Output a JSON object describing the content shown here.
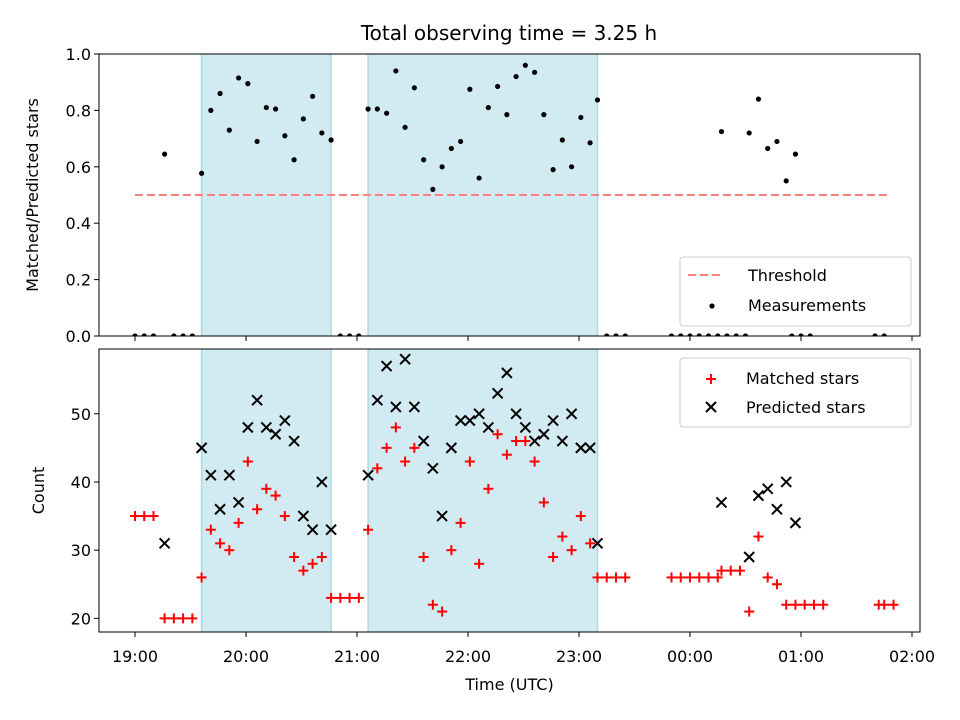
{
  "title": "Total observing time = 3.25 h",
  "colors": {
    "shade": "#add8e6",
    "threshold": "#ff7f7f",
    "measurement": "#000000",
    "matched": "#ff0000",
    "predicted": "#000000"
  },
  "chart_data": [
    {
      "type": "scatter",
      "ylabel": "Matched/Predicted stars",
      "xlabel": "",
      "ylim": [
        0,
        1.0
      ],
      "yticks": [
        "0.0",
        "0.2",
        "0.4",
        "0.6",
        "0.8",
        "1.0"
      ],
      "xticks": [
        "19:00",
        "20:00",
        "21:00",
        "22:00",
        "23:00",
        "00:00",
        "01:00",
        "02:00"
      ],
      "legend": "bottom-right",
      "threshold": {
        "name": "Threshold",
        "y": 0.5,
        "x_start": "19:00",
        "x_end": "01:48"
      },
      "shaded_intervals": [
        [
          "19:36",
          "20:46"
        ],
        [
          "21:06",
          "23:10"
        ]
      ],
      "series": [
        {
          "name": "Measurements",
          "points": [
            [
              "19:00",
              0.0
            ],
            [
              "19:05",
              0.0
            ],
            [
              "19:10",
              0.0
            ],
            [
              "19:16",
              0.645
            ],
            [
              "19:21",
              0.0
            ],
            [
              "19:26",
              0.0
            ],
            [
              "19:31",
              0.0
            ],
            [
              "19:36",
              0.577
            ],
            [
              "19:41",
              0.8
            ],
            [
              "19:46",
              0.86
            ],
            [
              "19:51",
              0.73
            ],
            [
              "19:56",
              0.915
            ],
            [
              "20:01",
              0.895
            ],
            [
              "20:06",
              0.69
            ],
            [
              "20:11",
              0.81
            ],
            [
              "20:16",
              0.805
            ],
            [
              "20:21",
              0.71
            ],
            [
              "20:26",
              0.625
            ],
            [
              "20:31",
              0.77
            ],
            [
              "20:36",
              0.85
            ],
            [
              "20:41",
              0.72
            ],
            [
              "20:46",
              0.695
            ],
            [
              "20:51",
              0.0
            ],
            [
              "20:56",
              0.0
            ],
            [
              "21:01",
              0.0
            ],
            [
              "21:06",
              0.805
            ],
            [
              "21:11",
              0.805
            ],
            [
              "21:16",
              0.79
            ],
            [
              "21:21",
              0.94
            ],
            [
              "21:26",
              0.74
            ],
            [
              "21:31",
              0.88
            ],
            [
              "21:36",
              0.625
            ],
            [
              "21:41",
              0.52
            ],
            [
              "21:46",
              0.6
            ],
            [
              "21:51",
              0.665
            ],
            [
              "21:56",
              0.69
            ],
            [
              "22:01",
              0.875
            ],
            [
              "22:06",
              0.56
            ],
            [
              "22:11",
              0.81
            ],
            [
              "22:16",
              0.885
            ],
            [
              "22:21",
              0.785
            ],
            [
              "22:26",
              0.92
            ],
            [
              "22:31",
              0.96
            ],
            [
              "22:36",
              0.935
            ],
            [
              "22:41",
              0.785
            ],
            [
              "22:46",
              0.59
            ],
            [
              "22:51",
              0.695
            ],
            [
              "22:56",
              0.6
            ],
            [
              "23:01",
              0.775
            ],
            [
              "23:06",
              0.685
            ],
            [
              "23:10",
              0.837
            ],
            [
              "23:15",
              0.0
            ],
            [
              "23:20",
              0.0
            ],
            [
              "23:25",
              0.0
            ],
            [
              "23:50",
              0.0
            ],
            [
              "23:55",
              0.0
            ],
            [
              "00:00",
              0.0
            ],
            [
              "00:05",
              0.0
            ],
            [
              "00:10",
              0.0
            ],
            [
              "00:15",
              0.0
            ],
            [
              "00:20",
              0.0
            ],
            [
              "00:17",
              0.725
            ],
            [
              "00:25",
              0.0
            ],
            [
              "00:30",
              0.0
            ],
            [
              "00:32",
              0.72
            ],
            [
              "00:37",
              0.84
            ],
            [
              "00:42",
              0.665
            ],
            [
              "00:47",
              0.69
            ],
            [
              "00:52",
              0.55
            ],
            [
              "00:57",
              0.645
            ],
            [
              "00:55",
              0.0
            ],
            [
              "01:00",
              0.0
            ],
            [
              "01:05",
              0.0
            ],
            [
              "01:40",
              0.0
            ],
            [
              "01:45",
              0.0
            ]
          ]
        }
      ]
    },
    {
      "type": "scatter",
      "ylabel": "Count",
      "xlabel": "Time (UTC)",
      "ylim": [
        18,
        59.5
      ],
      "yticks": [
        "20",
        "30",
        "40",
        "50"
      ],
      "xticks": [
        "19:00",
        "20:00",
        "21:00",
        "22:00",
        "23:00",
        "00:00",
        "01:00",
        "02:00"
      ],
      "legend": "top-right",
      "shaded_intervals": [
        [
          "19:36",
          "20:46"
        ],
        [
          "21:06",
          "23:10"
        ]
      ],
      "series": [
        {
          "name": "Matched stars",
          "points": [
            [
              "19:00",
              35
            ],
            [
              "19:05",
              35
            ],
            [
              "19:10",
              35
            ],
            [
              "19:16",
              20
            ],
            [
              "19:21",
              20
            ],
            [
              "19:26",
              20
            ],
            [
              "19:31",
              20
            ],
            [
              "19:36",
              26
            ],
            [
              "19:41",
              33
            ],
            [
              "19:46",
              31
            ],
            [
              "19:51",
              30
            ],
            [
              "19:56",
              34
            ],
            [
              "20:01",
              43
            ],
            [
              "20:06",
              36
            ],
            [
              "20:11",
              39
            ],
            [
              "20:16",
              38
            ],
            [
              "20:21",
              35
            ],
            [
              "20:26",
              29
            ],
            [
              "20:31",
              27
            ],
            [
              "20:36",
              28
            ],
            [
              "20:41",
              29
            ],
            [
              "20:46",
              23
            ],
            [
              "20:51",
              23
            ],
            [
              "20:56",
              23
            ],
            [
              "21:01",
              23
            ],
            [
              "21:06",
              33
            ],
            [
              "21:11",
              42
            ],
            [
              "21:16",
              45
            ],
            [
              "21:21",
              48
            ],
            [
              "21:26",
              43
            ],
            [
              "21:31",
              45
            ],
            [
              "21:36",
              29
            ],
            [
              "21:41",
              22
            ],
            [
              "21:46",
              21
            ],
            [
              "21:51",
              30
            ],
            [
              "21:56",
              34
            ],
            [
              "22:01",
              43
            ],
            [
              "22:06",
              28
            ],
            [
              "22:11",
              39
            ],
            [
              "22:16",
              47
            ],
            [
              "22:21",
              44
            ],
            [
              "22:26",
              46
            ],
            [
              "22:31",
              46
            ],
            [
              "22:36",
              43
            ],
            [
              "22:41",
              37
            ],
            [
              "22:46",
              29
            ],
            [
              "22:51",
              32
            ],
            [
              "22:56",
              30
            ],
            [
              "23:01",
              35
            ],
            [
              "23:06",
              31
            ],
            [
              "23:10",
              26
            ],
            [
              "23:15",
              26
            ],
            [
              "23:20",
              26
            ],
            [
              "23:25",
              26
            ],
            [
              "23:50",
              26
            ],
            [
              "23:55",
              26
            ],
            [
              "00:00",
              26
            ],
            [
              "00:05",
              26
            ],
            [
              "00:10",
              26
            ],
            [
              "00:15",
              26
            ],
            [
              "00:17",
              27
            ],
            [
              "00:22",
              27
            ],
            [
              "00:27",
              27
            ],
            [
              "00:32",
              21
            ],
            [
              "00:37",
              32
            ],
            [
              "00:42",
              26
            ],
            [
              "00:47",
              25
            ],
            [
              "00:52",
              22
            ],
            [
              "00:57",
              22
            ],
            [
              "01:02",
              22
            ],
            [
              "01:07",
              22
            ],
            [
              "01:12",
              22
            ],
            [
              "01:42",
              22
            ],
            [
              "01:45",
              22
            ],
            [
              "01:50",
              22
            ]
          ]
        },
        {
          "name": "Predicted stars",
          "points": [
            [
              "19:16",
              31
            ],
            [
              "19:36",
              45
            ],
            [
              "19:41",
              41
            ],
            [
              "19:46",
              36
            ],
            [
              "19:51",
              41
            ],
            [
              "19:56",
              37
            ],
            [
              "20:01",
              48
            ],
            [
              "20:06",
              52
            ],
            [
              "20:11",
              48
            ],
            [
              "20:16",
              47
            ],
            [
              "20:21",
              49
            ],
            [
              "20:26",
              46
            ],
            [
              "20:31",
              35
            ],
            [
              "20:36",
              33
            ],
            [
              "20:41",
              40
            ],
            [
              "20:46",
              33
            ],
            [
              "21:06",
              41
            ],
            [
              "21:11",
              52
            ],
            [
              "21:16",
              57
            ],
            [
              "21:21",
              51
            ],
            [
              "21:26",
              58
            ],
            [
              "21:31",
              51
            ],
            [
              "21:36",
              46
            ],
            [
              "21:41",
              42
            ],
            [
              "21:46",
              35
            ],
            [
              "21:51",
              45
            ],
            [
              "21:56",
              49
            ],
            [
              "22:01",
              49
            ],
            [
              "22:06",
              50
            ],
            [
              "22:11",
              48
            ],
            [
              "22:16",
              53
            ],
            [
              "22:21",
              56
            ],
            [
              "22:26",
              50
            ],
            [
              "22:31",
              48
            ],
            [
              "22:36",
              46
            ],
            [
              "22:41",
              47
            ],
            [
              "22:46",
              49
            ],
            [
              "22:51",
              46
            ],
            [
              "22:56",
              50
            ],
            [
              "23:01",
              45
            ],
            [
              "23:06",
              45
            ],
            [
              "23:10",
              31
            ],
            [
              "00:17",
              37
            ],
            [
              "00:32",
              29
            ],
            [
              "00:37",
              38
            ],
            [
              "00:42",
              39
            ],
            [
              "00:47",
              36
            ],
            [
              "00:52",
              40
            ],
            [
              "00:57",
              34
            ]
          ]
        }
      ]
    }
  ]
}
